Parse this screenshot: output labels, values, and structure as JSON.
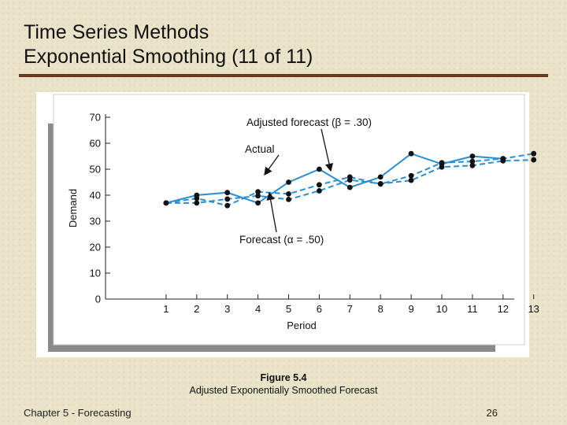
{
  "slide": {
    "title_line1": "Time Series Methods",
    "title_line2": "Exponential Smoothing (11 of 11)",
    "footer_left": "Chapter 5 - Forecasting",
    "page_number": "26",
    "accent_color": "#6b3a1a"
  },
  "figure": {
    "number": "Figure 5.4",
    "caption": "Adjusted Exponentially Smoothed Forecast"
  },
  "chart_data": {
    "type": "line",
    "xlabel": "Period",
    "ylabel": "Demand",
    "x": [
      1,
      2,
      3,
      4,
      5,
      6,
      7,
      8,
      9,
      10,
      11,
      12,
      13
    ],
    "ylim": [
      0,
      70
    ],
    "yticks": [
      0,
      10,
      20,
      30,
      40,
      50,
      60,
      70
    ],
    "grid": false,
    "series": [
      {
        "name": "Actual",
        "style": "solid",
        "color": "#2a8fd0",
        "values": [
          37,
          40,
          41,
          37,
          45,
          50,
          43,
          47,
          56,
          52,
          55,
          54,
          null
        ]
      },
      {
        "name": "Forecast (α = .50)",
        "style": "dashed",
        "color": "#2a8fd0",
        "values": [
          37,
          37,
          38.5,
          39.75,
          38.37,
          41.69,
          45.84,
          44.42,
          45.71,
          50.85,
          51.42,
          53.21,
          53.61
        ]
      },
      {
        "name": "Adjusted forecast (β = .30)",
        "style": "dashed",
        "color": "#2a8fd0",
        "values": [
          37,
          38.8,
          36,
          41.3,
          40.5,
          44,
          47,
          44.3,
          47.5,
          52.5,
          53,
          54.1,
          56
        ]
      }
    ],
    "annotations": [
      {
        "text": "Adjusted forecast (β = .30)",
        "points_to": "Adjusted forecast (β = .30)"
      },
      {
        "text": "Actual",
        "points_to": "Actual"
      },
      {
        "text": "Forecast (α = .50)",
        "points_to": "Forecast (α = .50)"
      }
    ]
  }
}
